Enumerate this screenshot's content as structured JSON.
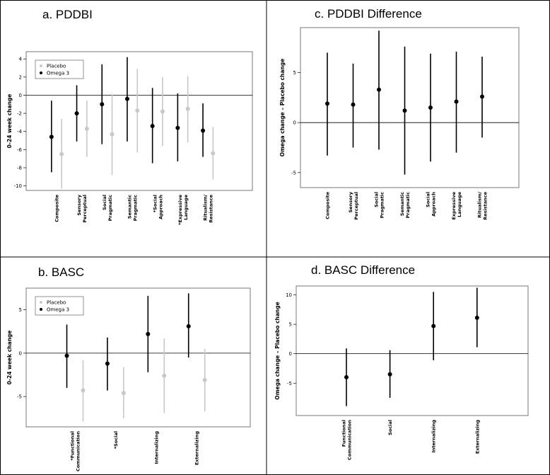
{
  "chart_data": [
    {
      "id": "a",
      "type": "scatter",
      "title": "a.   PDDBI",
      "ylabel": "0-24 week change",
      "ylim": [
        -10.5,
        4.8
      ],
      "yticks": [
        4,
        2,
        0,
        -2,
        -4,
        -6,
        -8,
        -10
      ],
      "hline": 0,
      "legend": {
        "placement": "top-left",
        "entries": [
          "Placebo",
          "Omega 3"
        ]
      },
      "categories": [
        [
          "Composite"
        ],
        [
          "Sensory",
          "Perceptual"
        ],
        [
          "Social",
          "Pragmatic"
        ],
        [
          "Semantic",
          "Pragmatic"
        ],
        [
          "*Social",
          "Approach"
        ],
        [
          "*Expressive",
          "Language"
        ],
        [
          "Ritualism/",
          "Resistance"
        ]
      ],
      "series": [
        {
          "name": "Omega 3",
          "color": "#000000",
          "offset": -0.2,
          "values": [
            -4.6,
            -2.0,
            -1.0,
            -0.4,
            -3.4,
            -3.6,
            -3.9
          ],
          "lower": [
            -8.5,
            -5.1,
            -5.4,
            -5.1,
            -7.5,
            -7.3,
            -6.8
          ],
          "upper": [
            -0.6,
            1.1,
            3.4,
            4.2,
            0.8,
            0.2,
            -0.9
          ]
        },
        {
          "name": "Placebo",
          "color": "#c8c8c8",
          "offset": 0.2,
          "values": [
            -6.5,
            -3.7,
            -4.3,
            -1.7,
            -1.8,
            -1.5,
            -6.4
          ],
          "lower": [
            -10.3,
            -6.8,
            -8.8,
            -6.3,
            -5.6,
            -5.2,
            -9.3
          ],
          "upper": [
            -2.6,
            -0.6,
            0.1,
            2.9,
            2.0,
            2.1,
            -3.5
          ]
        }
      ]
    },
    {
      "id": "c",
      "type": "scatter",
      "title": "c.   PDDBI Difference",
      "ylabel": "Omega change – Placebo change",
      "ylim": [
        -6.5,
        9.5
      ],
      "yticks": [
        5,
        0,
        -5
      ],
      "hline": 0,
      "categories": [
        [
          "Composite"
        ],
        [
          "Sensory",
          "Perceptual"
        ],
        [
          "Social",
          "Pragmatic"
        ],
        [
          "Semantic",
          "Pragmatic"
        ],
        [
          "Social",
          "Approach"
        ],
        [
          "Expressive",
          "Language"
        ],
        [
          "Ritualism/",
          "Resistance"
        ]
      ],
      "series": [
        {
          "color": "#000000",
          "offset": 0,
          "values": [
            1.9,
            1.8,
            3.3,
            1.2,
            1.5,
            2.1,
            2.6
          ],
          "lower": [
            -3.3,
            -2.5,
            -2.7,
            -5.2,
            -3.9,
            -3.0,
            -1.5
          ],
          "upper": [
            7.0,
            5.9,
            9.2,
            7.6,
            6.9,
            7.1,
            6.6
          ]
        }
      ]
    },
    {
      "id": "b",
      "type": "scatter",
      "title": "b.   BASC",
      "ylabel": "0-24 week change",
      "ylim": [
        -8.5,
        7.5
      ],
      "yticks": [
        5,
        0,
        -5
      ],
      "hline": 0,
      "legend": {
        "placement": "top-left",
        "entries": [
          "Placebo",
          "Omega 3"
        ]
      },
      "categories": [
        [
          "*Functional",
          "Communication"
        ],
        [
          "*Social"
        ],
        [
          "Internalizing"
        ],
        [
          "Externalizing"
        ]
      ],
      "series": [
        {
          "name": "Omega 3",
          "color": "#000000",
          "offset": -0.2,
          "values": [
            -0.3,
            -1.2,
            2.2,
            3.1
          ],
          "lower": [
            -4.0,
            -4.3,
            -2.2,
            -0.5
          ],
          "upper": [
            3.3,
            1.8,
            6.6,
            6.9
          ]
        },
        {
          "name": "Placebo",
          "color": "#c8c8c8",
          "offset": 0.2,
          "values": [
            -4.3,
            -4.6,
            -2.6,
            -3.1
          ],
          "lower": [
            -7.9,
            -7.5,
            -6.9,
            -6.7
          ],
          "upper": [
            -0.8,
            -1.6,
            1.7,
            0.5
          ]
        }
      ]
    },
    {
      "id": "d",
      "type": "scatter",
      "title": "d.   BASC Difference",
      "ylabel": "Omega change – Placebo change",
      "ylim": [
        -10.5,
        11.5
      ],
      "yticks": [
        10,
        5,
        0,
        -5
      ],
      "hline": 0,
      "categories": [
        [
          "Functional",
          "Communication"
        ],
        [
          "Social"
        ],
        [
          "Internalizing"
        ],
        [
          "Externalizing"
        ]
      ],
      "series": [
        {
          "color": "#000000",
          "offset": 0,
          "values": [
            -4.0,
            -3.5,
            4.7,
            6.1
          ],
          "lower": [
            -8.9,
            -7.5,
            -1.1,
            1.1
          ],
          "upper": [
            0.9,
            0.6,
            10.5,
            11.2
          ]
        }
      ]
    }
  ]
}
